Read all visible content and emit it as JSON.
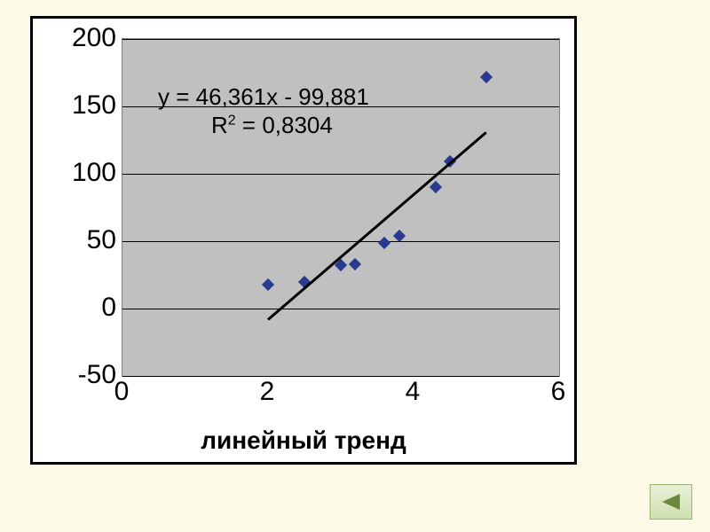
{
  "chart": {
    "type": "scatter",
    "title": "линейный тренд",
    "title_fontsize": 28,
    "title_fontweight": "bold",
    "background_color": "#ffffff",
    "plot_background_color": "#c0c0c0",
    "plot_border_color": "#808080",
    "grid_color": "#000000",
    "frame_border_color": "#000000",
    "xlim": [
      0,
      6
    ],
    "ylim": [
      -50,
      200
    ],
    "ytick_step": 50,
    "yticks": [
      -50,
      0,
      50,
      100,
      150,
      200
    ],
    "xticks": [
      0,
      2,
      4,
      6
    ],
    "tick_fontsize": 30,
    "equation_line1": "y = 46,361x - 99,881",
    "r2_label": "R",
    "r2_sup": "2",
    "r2_rest": " = 0,8304",
    "equation_fontsize": 26,
    "equation_color": "#000000",
    "marker_color": "#2a3a8f",
    "marker_style": "diamond",
    "marker_size": 10,
    "trendline_color": "#000000",
    "trendline_width": 3,
    "data_points": [
      {
        "x": 2.0,
        "y": 18
      },
      {
        "x": 2.5,
        "y": 20
      },
      {
        "x": 3.0,
        "y": 32
      },
      {
        "x": 3.2,
        "y": 33
      },
      {
        "x": 3.6,
        "y": 49
      },
      {
        "x": 3.8,
        "y": 54
      },
      {
        "x": 4.3,
        "y": 90
      },
      {
        "x": 4.5,
        "y": 109
      },
      {
        "x": 5.0,
        "y": 172
      }
    ],
    "trendline": {
      "slope": 46.361,
      "intercept": -99.881,
      "x_start": 2.0,
      "x_end": 5.0
    }
  },
  "nav": {
    "back_icon_color": "#6a8a3a",
    "back_btn_bg_top": "#e8f0d8",
    "back_btn_bg_bottom": "#cfe0b0",
    "back_btn_border": "#9ab070"
  }
}
